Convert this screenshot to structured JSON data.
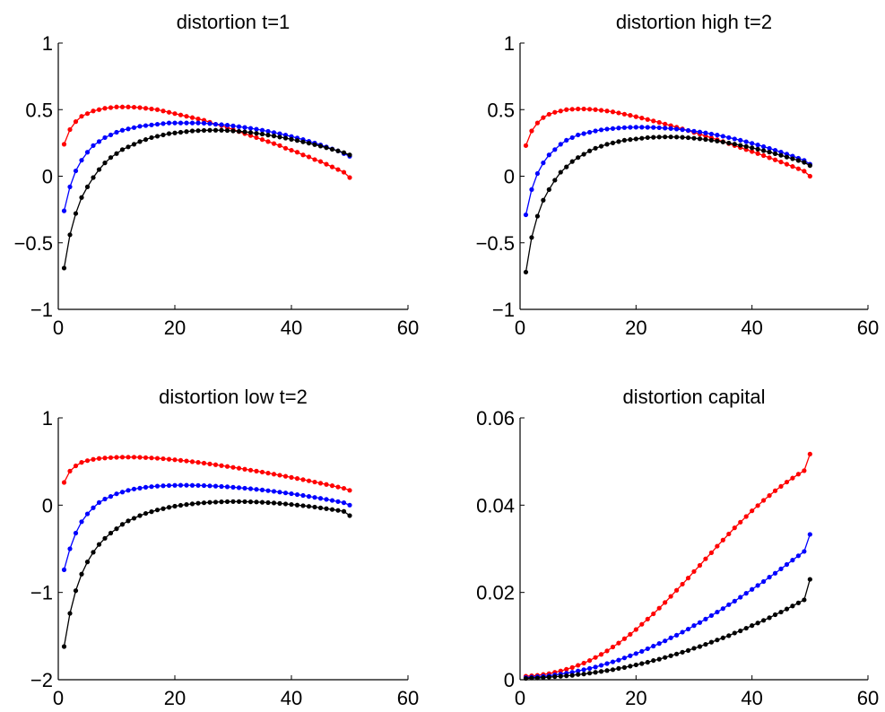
{
  "chart_data": [
    {
      "type": "line",
      "title": "distortion t=1",
      "xlim": [
        0,
        60
      ],
      "ylim": [
        -1,
        1
      ],
      "xticks": [
        0,
        20,
        40,
        60
      ],
      "yticks": [
        -1,
        -0.5,
        0,
        0.5,
        1
      ],
      "xtick_labels": [
        "0",
        "20",
        "40",
        "60"
      ],
      "ytick_labels": [
        "−1",
        "−0.5",
        "0",
        "0.5",
        "1"
      ],
      "x": {
        "start": 1,
        "end": 50
      },
      "series": [
        {
          "color": "#ff0000",
          "values": [
            0.24,
            0.35,
            0.41,
            0.45,
            0.47,
            0.49,
            0.5,
            0.51,
            0.515,
            0.52,
            0.52,
            0.52,
            0.518,
            0.515,
            0.51,
            0.505,
            0.5,
            0.49,
            0.48,
            0.47,
            0.46,
            0.45,
            0.44,
            0.43,
            0.42,
            0.405,
            0.39,
            0.38,
            0.365,
            0.35,
            0.335,
            0.32,
            0.305,
            0.29,
            0.275,
            0.26,
            0.245,
            0.23,
            0.21,
            0.195,
            0.18,
            0.16,
            0.145,
            0.125,
            0.11,
            0.09,
            0.07,
            0.05,
            0.03,
            -0.01
          ]
        },
        {
          "color": "#0000ff",
          "values": [
            -0.26,
            -0.08,
            0.04,
            0.12,
            0.18,
            0.23,
            0.26,
            0.29,
            0.31,
            0.33,
            0.345,
            0.355,
            0.365,
            0.375,
            0.38,
            0.385,
            0.39,
            0.395,
            0.4,
            0.4,
            0.4,
            0.4,
            0.4,
            0.4,
            0.398,
            0.395,
            0.39,
            0.387,
            0.383,
            0.378,
            0.372,
            0.366,
            0.36,
            0.353,
            0.345,
            0.337,
            0.328,
            0.319,
            0.309,
            0.298,
            0.287,
            0.275,
            0.262,
            0.249,
            0.235,
            0.22,
            0.205,
            0.19,
            0.17,
            0.15
          ]
        },
        {
          "color": "#000000",
          "values": [
            -0.69,
            -0.44,
            -0.28,
            -0.16,
            -0.08,
            -0.01,
            0.05,
            0.1,
            0.14,
            0.17,
            0.2,
            0.22,
            0.24,
            0.26,
            0.275,
            0.29,
            0.3,
            0.31,
            0.32,
            0.325,
            0.33,
            0.335,
            0.34,
            0.342,
            0.344,
            0.345,
            0.345,
            0.345,
            0.343,
            0.34,
            0.337,
            0.333,
            0.328,
            0.322,
            0.316,
            0.309,
            0.302,
            0.294,
            0.286,
            0.277,
            0.268,
            0.258,
            0.248,
            0.237,
            0.226,
            0.214,
            0.202,
            0.19,
            0.177,
            0.16
          ]
        }
      ]
    },
    {
      "type": "line",
      "title": "distortion high t=2",
      "xlim": [
        0,
        60
      ],
      "ylim": [
        -1,
        1
      ],
      "xticks": [
        0,
        20,
        40,
        60
      ],
      "yticks": [
        -1,
        -0.5,
        0,
        0.5,
        1
      ],
      "xtick_labels": [
        "0",
        "20",
        "40",
        "60"
      ],
      "ytick_labels": [
        "−1",
        "−0.5",
        "0",
        "0.5",
        "1"
      ],
      "x": {
        "start": 1,
        "end": 50
      },
      "series": [
        {
          "color": "#ff0000",
          "values": [
            0.23,
            0.34,
            0.4,
            0.44,
            0.465,
            0.48,
            0.49,
            0.5,
            0.503,
            0.505,
            0.505,
            0.503,
            0.5,
            0.495,
            0.49,
            0.483,
            0.475,
            0.466,
            0.457,
            0.447,
            0.437,
            0.426,
            0.415,
            0.404,
            0.392,
            0.38,
            0.368,
            0.355,
            0.342,
            0.329,
            0.316,
            0.302,
            0.288,
            0.274,
            0.26,
            0.245,
            0.23,
            0.215,
            0.2,
            0.185,
            0.17,
            0.155,
            0.139,
            0.123,
            0.107,
            0.09,
            0.073,
            0.056,
            0.038,
            0.0
          ]
        },
        {
          "color": "#0000ff",
          "values": [
            -0.29,
            -0.1,
            0.02,
            0.1,
            0.16,
            0.2,
            0.24,
            0.27,
            0.29,
            0.31,
            0.32,
            0.33,
            0.34,
            0.348,
            0.354,
            0.358,
            0.362,
            0.365,
            0.367,
            0.368,
            0.368,
            0.367,
            0.366,
            0.364,
            0.361,
            0.358,
            0.354,
            0.349,
            0.344,
            0.338,
            0.332,
            0.325,
            0.317,
            0.309,
            0.3,
            0.29,
            0.28,
            0.27,
            0.259,
            0.247,
            0.235,
            0.222,
            0.209,
            0.195,
            0.181,
            0.166,
            0.151,
            0.135,
            0.119,
            0.09
          ]
        },
        {
          "color": "#000000",
          "values": [
            -0.72,
            -0.46,
            -0.3,
            -0.18,
            -0.1,
            -0.03,
            0.03,
            0.07,
            0.11,
            0.14,
            0.165,
            0.19,
            0.21,
            0.225,
            0.24,
            0.25,
            0.26,
            0.27,
            0.275,
            0.28,
            0.285,
            0.29,
            0.292,
            0.294,
            0.295,
            0.295,
            0.294,
            0.292,
            0.289,
            0.285,
            0.281,
            0.276,
            0.27,
            0.264,
            0.257,
            0.249,
            0.241,
            0.232,
            0.223,
            0.213,
            0.203,
            0.192,
            0.181,
            0.169,
            0.157,
            0.144,
            0.131,
            0.118,
            0.104,
            0.08
          ]
        }
      ]
    },
    {
      "type": "line",
      "title": "distortion low t=2",
      "xlim": [
        0,
        60
      ],
      "ylim": [
        -2,
        1
      ],
      "xticks": [
        0,
        20,
        40,
        60
      ],
      "yticks": [
        -2,
        -1,
        0,
        1
      ],
      "xtick_labels": [
        "0",
        "20",
        "40",
        "60"
      ],
      "ytick_labels": [
        "−2",
        "−1",
        "0",
        "1"
      ],
      "x": {
        "start": 1,
        "end": 50
      },
      "series": [
        {
          "color": "#ff0000",
          "values": [
            0.26,
            0.39,
            0.45,
            0.49,
            0.51,
            0.525,
            0.535,
            0.54,
            0.545,
            0.548,
            0.55,
            0.55,
            0.55,
            0.548,
            0.545,
            0.541,
            0.537,
            0.532,
            0.526,
            0.52,
            0.513,
            0.506,
            0.498,
            0.49,
            0.481,
            0.472,
            0.463,
            0.453,
            0.443,
            0.433,
            0.423,
            0.412,
            0.401,
            0.39,
            0.379,
            0.367,
            0.355,
            0.343,
            0.331,
            0.318,
            0.305,
            0.292,
            0.279,
            0.265,
            0.251,
            0.237,
            0.223,
            0.208,
            0.193,
            0.17
          ]
        },
        {
          "color": "#0000ff",
          "values": [
            -0.74,
            -0.5,
            -0.32,
            -0.19,
            -0.1,
            -0.03,
            0.03,
            0.07,
            0.1,
            0.13,
            0.15,
            0.17,
            0.185,
            0.195,
            0.205,
            0.212,
            0.218,
            0.222,
            0.225,
            0.227,
            0.228,
            0.228,
            0.227,
            0.226,
            0.224,
            0.221,
            0.218,
            0.214,
            0.21,
            0.205,
            0.2,
            0.194,
            0.188,
            0.181,
            0.174,
            0.166,
            0.158,
            0.149,
            0.14,
            0.131,
            0.121,
            0.111,
            0.1,
            0.089,
            0.078,
            0.066,
            0.054,
            0.041,
            0.028,
            0.0
          ]
        },
        {
          "color": "#000000",
          "values": [
            -1.62,
            -1.24,
            -0.98,
            -0.79,
            -0.65,
            -0.54,
            -0.45,
            -0.38,
            -0.32,
            -0.27,
            -0.22,
            -0.18,
            -0.15,
            -0.12,
            -0.095,
            -0.075,
            -0.055,
            -0.04,
            -0.025,
            -0.012,
            -0.002,
            0.007,
            0.015,
            0.022,
            0.027,
            0.032,
            0.035,
            0.038,
            0.04,
            0.041,
            0.041,
            0.04,
            0.038,
            0.036,
            0.033,
            0.029,
            0.025,
            0.02,
            0.014,
            0.008,
            0.001,
            -0.006,
            -0.014,
            -0.022,
            -0.031,
            -0.04,
            -0.05,
            -0.06,
            -0.071,
            -0.12
          ]
        }
      ]
    },
    {
      "type": "line",
      "title": "distortion capital",
      "xlim": [
        0,
        60
      ],
      "ylim": [
        0,
        0.06
      ],
      "xticks": [
        0,
        20,
        40,
        60
      ],
      "yticks": [
        0,
        0.02,
        0.04,
        0.06
      ],
      "xtick_labels": [
        "0",
        "20",
        "40",
        "60"
      ],
      "ytick_labels": [
        "0",
        "0.02",
        "0.04",
        "0.06"
      ],
      "x": {
        "start": 1,
        "end": 50
      },
      "series": [
        {
          "color": "#ff0000",
          "values": [
            0.0008,
            0.0009,
            0.001,
            0.0012,
            0.0014,
            0.0017,
            0.002,
            0.0024,
            0.0028,
            0.0033,
            0.0038,
            0.0044,
            0.0051,
            0.0058,
            0.0066,
            0.0075,
            0.0084,
            0.0094,
            0.0104,
            0.0115,
            0.0127,
            0.0139,
            0.0151,
            0.0164,
            0.0177,
            0.0191,
            0.0205,
            0.0219,
            0.0233,
            0.0248,
            0.0262,
            0.0277,
            0.0291,
            0.0306,
            0.032,
            0.0334,
            0.0348,
            0.0361,
            0.0374,
            0.0387,
            0.0399,
            0.0411,
            0.0422,
            0.0433,
            0.0443,
            0.0453,
            0.0462,
            0.0471,
            0.0479,
            0.0517
          ]
        },
        {
          "color": "#0000ff",
          "values": [
            0.0005,
            0.0006,
            0.0007,
            0.0008,
            0.0009,
            0.0011,
            0.0013,
            0.0015,
            0.0017,
            0.002,
            0.0023,
            0.0026,
            0.0029,
            0.0033,
            0.0037,
            0.0041,
            0.0045,
            0.005,
            0.0055,
            0.006,
            0.0065,
            0.0071,
            0.0077,
            0.0083,
            0.0089,
            0.0096,
            0.0102,
            0.0109,
            0.0116,
            0.0124,
            0.0131,
            0.0139,
            0.0147,
            0.0155,
            0.0163,
            0.0172,
            0.018,
            0.0189,
            0.0198,
            0.0207,
            0.0216,
            0.0225,
            0.0235,
            0.0244,
            0.0254,
            0.0264,
            0.0274,
            0.0284,
            0.0294,
            0.0333
          ]
        },
        {
          "color": "#000000",
          "values": [
            0.0003,
            0.0004,
            0.0004,
            0.0005,
            0.0006,
            0.0007,
            0.0008,
            0.0009,
            0.001,
            0.0012,
            0.0013,
            0.0015,
            0.0017,
            0.0019,
            0.0021,
            0.0023,
            0.0026,
            0.0028,
            0.0031,
            0.0034,
            0.0037,
            0.004,
            0.0044,
            0.0047,
            0.0051,
            0.0055,
            0.0059,
            0.0063,
            0.0067,
            0.0072,
            0.0076,
            0.0081,
            0.0086,
            0.0091,
            0.0096,
            0.0101,
            0.0107,
            0.0112,
            0.0118,
            0.0124,
            0.013,
            0.0136,
            0.0142,
            0.0149,
            0.0155,
            0.0162,
            0.0169,
            0.0176,
            0.0183,
            0.023
          ]
        }
      ]
    }
  ]
}
